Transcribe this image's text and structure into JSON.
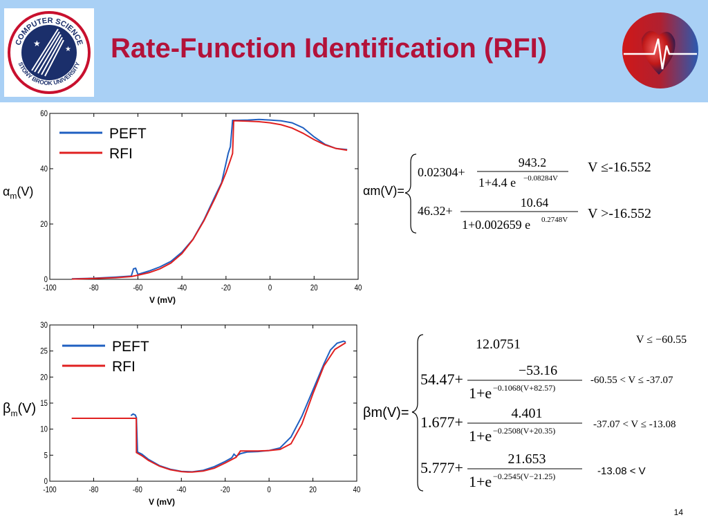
{
  "slide": {
    "title": "Rate-Function Identification (RFI)",
    "number": "14",
    "logo_text_top": "COMPUTER SCIENCE",
    "logo_text_bottom": "STONY BROOK UNIVERSITY",
    "title_color": "#b3123a",
    "header_color": "#a9d0f5"
  },
  "labels": {
    "alpha_left": "α",
    "alpha_sub": "m",
    "alpha_arg": "(V)",
    "beta_left": "β",
    "beta_sub": "m",
    "beta_arg": "(V)"
  },
  "alpha_eq": {
    "lhs": "αm(V)=",
    "row1_const": "0.02304+",
    "row1_num": "943.2",
    "row1_den": "1+4.4 e",
    "row1_exp": "−0.08284V",
    "row1_cond": "V  ≤-16.552",
    "row2_const": "46.32+",
    "row2_num": "10.64",
    "row2_den": "1+0.002659 e",
    "row2_exp": "0.2748V",
    "row2_cond": "V  >-16.552"
  },
  "beta_eq": {
    "lhs": "βm(V)=",
    "row1_value": "12.0751",
    "row1_cond": "V ≤ −60.55",
    "row2_const": "54.47+",
    "row2_num": "−53.16",
    "row2_den": "1+e",
    "row2_exp": "−0.1068(V+82.57)",
    "row2_cond": "-60.55 < V ≤ -37.07",
    "row3_const": "1.677+",
    "row3_num": "4.401",
    "row3_den": "1+e",
    "row3_exp": "−0.2508(V+20.35)",
    "row3_cond": "-37.07 < V ≤ -13.08",
    "row4_const": "5.777+",
    "row4_num": "21.653",
    "row4_den": "1+e",
    "row4_exp": "−0.2545(V−21.25)",
    "row4_cond": "-13.08 < V"
  },
  "chart_data": [
    {
      "type": "line",
      "xlabel": "V (mV)",
      "ylabel": "",
      "xlim": [
        -100,
        40
      ],
      "ylim": [
        0,
        60
      ],
      "xticks": [
        -100,
        -80,
        -60,
        -40,
        -20,
        0,
        20,
        40
      ],
      "yticks": [
        0,
        20,
        40,
        60
      ],
      "legend": "top-left",
      "series": [
        {
          "name": "PEFT",
          "color": "#1f5fc0",
          "x": [
            -90,
            -80,
            -70,
            -63,
            -62,
            -61,
            -60,
            -55,
            -50,
            -45,
            -40,
            -35,
            -30,
            -25,
            -22,
            -20,
            -19,
            -18,
            -17,
            -15,
            -10,
            -5,
            0,
            5,
            10,
            15,
            20,
            25,
            30,
            35
          ],
          "y": [
            0.2,
            0.4,
            0.8,
            1.2,
            3.8,
            4.0,
            1.8,
            3.0,
            4.5,
            6.5,
            9.8,
            14.5,
            21.5,
            30.0,
            35.0,
            42.0,
            45.5,
            48.0,
            57.5,
            57.5,
            57.6,
            57.8,
            57.6,
            57.3,
            56.6,
            54.8,
            51.5,
            48.8,
            47.3,
            46.9
          ]
        },
        {
          "name": "RFI",
          "color": "#e02020",
          "x": [
            -90,
            -80,
            -70,
            -63,
            -60,
            -55,
            -50,
            -45,
            -40,
            -35,
            -30,
            -25,
            -22,
            -20,
            -18,
            -17,
            -16.5,
            -15,
            -10,
            -5,
            0,
            5,
            10,
            15,
            20,
            25,
            30,
            35
          ],
          "y": [
            0.1,
            0.3,
            0.6,
            1.0,
            1.5,
            2.4,
            3.8,
            5.9,
            9.3,
            14.4,
            21.2,
            29.3,
            34.6,
            38.6,
            43.1,
            45.5,
            57.3,
            57.3,
            57.2,
            57.0,
            56.6,
            55.9,
            54.7,
            52.8,
            50.5,
            48.6,
            47.3,
            46.7
          ]
        }
      ]
    },
    {
      "type": "line",
      "xlabel": "V (mV)",
      "ylabel": "",
      "xlim": [
        -100,
        40
      ],
      "ylim": [
        0,
        30
      ],
      "xticks": [
        -100,
        -80,
        -60,
        -40,
        -20,
        0,
        20,
        40
      ],
      "yticks": [
        0,
        5,
        10,
        15,
        20,
        25,
        30
      ],
      "legend": "top-left",
      "series": [
        {
          "name": "PEFT",
          "color": "#1f5fc0",
          "x": [
            -63,
            -62,
            -61,
            -60.5,
            -60,
            -58,
            -55,
            -50,
            -45,
            -40,
            -35,
            -30,
            -25,
            -20,
            -17,
            -16,
            -15,
            -13,
            -10,
            -5,
            0,
            5,
            10,
            15,
            20,
            25,
            28,
            31,
            34,
            35
          ],
          "y": [
            12.6,
            12.9,
            12.7,
            12.2,
            5.6,
            5.2,
            4.2,
            3.0,
            2.3,
            1.9,
            1.8,
            2.1,
            2.8,
            3.8,
            4.5,
            5.2,
            4.8,
            5.3,
            5.6,
            5.7,
            5.9,
            6.4,
            8.5,
            12.5,
            17.5,
            22.5,
            25.2,
            26.5,
            26.9,
            26.7
          ]
        },
        {
          "name": "RFI",
          "color": "#e02020",
          "x": [
            -90,
            -80,
            -70,
            -62,
            -60.55,
            -60.5,
            -58,
            -55,
            -50,
            -45,
            -40,
            -37.07,
            -35,
            -30,
            -25,
            -20,
            -15,
            -13.08,
            -10,
            -5,
            0,
            5,
            10,
            15,
            20,
            25,
            30,
            35
          ],
          "y": [
            12.08,
            12.08,
            12.08,
            12.08,
            12.08,
            5.5,
            4.9,
            4.0,
            2.9,
            2.2,
            1.85,
            1.75,
            1.75,
            1.95,
            2.5,
            3.5,
            4.6,
            5.8,
            5.8,
            5.8,
            5.9,
            6.1,
            7.2,
            11.0,
            16.8,
            22.1,
            25.3,
            26.6
          ]
        }
      ]
    }
  ]
}
